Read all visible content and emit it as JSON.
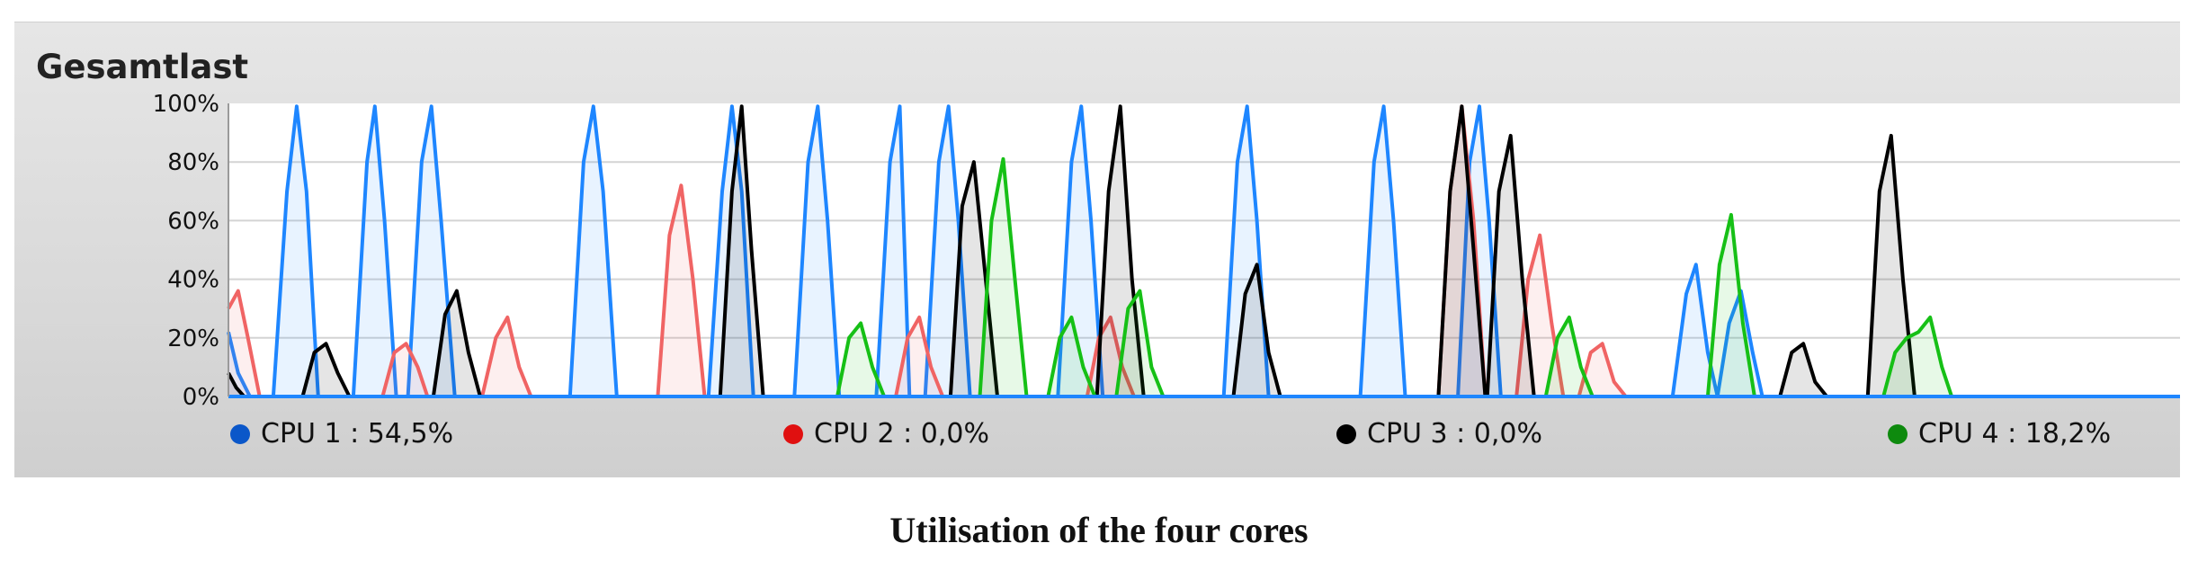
{
  "panel_title": "Gesamtlast",
  "caption": "Utilisation of the four cores",
  "chart_data": {
    "type": "area",
    "title": "Gesamtlast",
    "ylim": [
      0,
      100
    ],
    "y_ticks": [
      "0%",
      "20%",
      "40%",
      "60%",
      "80%",
      "100%"
    ],
    "grid": true,
    "legend_placement": "bottom",
    "x": [
      0,
      100
    ],
    "series": [
      {
        "name": "CPU 1",
        "legend_label": "CPU 1 : 54,5%",
        "color": "#1e86ff",
        "legend_color": "#0b57c9",
        "points": [
          [
            0.0,
            22
          ],
          [
            0.5,
            8
          ],
          [
            1.1,
            0
          ],
          [
            2.3,
            0
          ],
          [
            3.0,
            70
          ],
          [
            3.5,
            99
          ],
          [
            4.0,
            70
          ],
          [
            4.6,
            0
          ],
          [
            6.4,
            0
          ],
          [
            7.1,
            80
          ],
          [
            7.5,
            99
          ],
          [
            8.0,
            60
          ],
          [
            8.6,
            0
          ],
          [
            9.2,
            0
          ],
          [
            9.9,
            80
          ],
          [
            10.4,
            99
          ],
          [
            10.9,
            60
          ],
          [
            11.6,
            0
          ],
          [
            17.5,
            0
          ],
          [
            18.2,
            80
          ],
          [
            18.7,
            99
          ],
          [
            19.2,
            70
          ],
          [
            19.9,
            0
          ],
          [
            24.6,
            0
          ],
          [
            25.3,
            70
          ],
          [
            25.8,
            99
          ],
          [
            26.3,
            70
          ],
          [
            26.9,
            0
          ],
          [
            29.0,
            0
          ],
          [
            29.7,
            80
          ],
          [
            30.2,
            99
          ],
          [
            30.7,
            60
          ],
          [
            31.3,
            0
          ],
          [
            33.2,
            0
          ],
          [
            33.9,
            80
          ],
          [
            34.4,
            99
          ],
          [
            34.9,
            0
          ],
          [
            35.7,
            0
          ],
          [
            36.4,
            80
          ],
          [
            36.9,
            99
          ],
          [
            37.4,
            60
          ],
          [
            38.0,
            0
          ],
          [
            42.5,
            0
          ],
          [
            43.2,
            80
          ],
          [
            43.7,
            99
          ],
          [
            44.2,
            60
          ],
          [
            44.8,
            0
          ],
          [
            51.0,
            0
          ],
          [
            51.7,
            80
          ],
          [
            52.2,
            99
          ],
          [
            52.7,
            60
          ],
          [
            53.3,
            0
          ],
          [
            58.0,
            0
          ],
          [
            58.7,
            80
          ],
          [
            59.2,
            99
          ],
          [
            59.7,
            60
          ],
          [
            60.3,
            0
          ],
          [
            63.0,
            0
          ],
          [
            63.6,
            80
          ],
          [
            64.1,
            99
          ],
          [
            64.6,
            60
          ],
          [
            65.2,
            0
          ],
          [
            74.0,
            0
          ],
          [
            74.7,
            35
          ],
          [
            75.2,
            45
          ],
          [
            75.8,
            15
          ],
          [
            76.3,
            0
          ],
          [
            76.9,
            25
          ],
          [
            77.5,
            36
          ],
          [
            78.1,
            15
          ],
          [
            78.6,
            0
          ],
          [
            100,
            0
          ]
        ]
      },
      {
        "name": "CPU 2",
        "legend_label": "CPU 2 : 0,0%",
        "color": "#f06464",
        "legend_color": "#e01010",
        "points": [
          [
            0.0,
            30
          ],
          [
            0.5,
            36
          ],
          [
            1.0,
            20
          ],
          [
            1.6,
            0
          ],
          [
            7.9,
            0
          ],
          [
            8.5,
            15
          ],
          [
            9.1,
            18
          ],
          [
            9.7,
            10
          ],
          [
            10.2,
            0
          ],
          [
            13.0,
            0
          ],
          [
            13.7,
            20
          ],
          [
            14.3,
            27
          ],
          [
            14.9,
            10
          ],
          [
            15.5,
            0
          ],
          [
            22.0,
            0
          ],
          [
            22.6,
            55
          ],
          [
            23.2,
            72
          ],
          [
            23.8,
            40
          ],
          [
            24.4,
            0
          ],
          [
            34.2,
            0
          ],
          [
            34.8,
            20
          ],
          [
            35.4,
            27
          ],
          [
            36.0,
            10
          ],
          [
            36.6,
            0
          ],
          [
            44.0,
            0
          ],
          [
            44.6,
            20
          ],
          [
            45.2,
            27
          ],
          [
            45.8,
            10
          ],
          [
            46.4,
            0
          ],
          [
            62.0,
            0
          ],
          [
            62.6,
            70
          ],
          [
            63.2,
            99
          ],
          [
            63.8,
            60
          ],
          [
            64.4,
            0
          ],
          [
            66.0,
            0
          ],
          [
            66.6,
            40
          ],
          [
            67.2,
            55
          ],
          [
            67.8,
            25
          ],
          [
            68.4,
            0
          ],
          [
            69.2,
            0
          ],
          [
            69.8,
            15
          ],
          [
            70.4,
            18
          ],
          [
            71.0,
            5
          ],
          [
            71.6,
            0
          ],
          [
            100,
            0
          ]
        ]
      },
      {
        "name": "CPU 3",
        "legend_label": "CPU 3 : 0,0%",
        "color": "#000000",
        "legend_color": "#000000",
        "points": [
          [
            0.0,
            8
          ],
          [
            0.4,
            3
          ],
          [
            0.8,
            0
          ],
          [
            3.8,
            0
          ],
          [
            4.4,
            15
          ],
          [
            5.0,
            18
          ],
          [
            5.6,
            8
          ],
          [
            6.2,
            0
          ],
          [
            10.5,
            0
          ],
          [
            11.1,
            28
          ],
          [
            11.7,
            36
          ],
          [
            12.3,
            15
          ],
          [
            12.9,
            0
          ],
          [
            25.2,
            0
          ],
          [
            25.8,
            70
          ],
          [
            26.3,
            99
          ],
          [
            26.8,
            50
          ],
          [
            27.4,
            0
          ],
          [
            37.0,
            0
          ],
          [
            37.6,
            65
          ],
          [
            38.2,
            80
          ],
          [
            38.8,
            40
          ],
          [
            39.4,
            0
          ],
          [
            44.5,
            0
          ],
          [
            45.1,
            70
          ],
          [
            45.7,
            99
          ],
          [
            46.3,
            40
          ],
          [
            46.9,
            0
          ],
          [
            51.5,
            0
          ],
          [
            52.1,
            35
          ],
          [
            52.7,
            45
          ],
          [
            53.3,
            15
          ],
          [
            53.9,
            0
          ],
          [
            62.0,
            0
          ],
          [
            62.6,
            70
          ],
          [
            63.2,
            99
          ],
          [
            63.8,
            50
          ],
          [
            64.4,
            0
          ],
          [
            64.5,
            0
          ],
          [
            65.1,
            70
          ],
          [
            65.7,
            89
          ],
          [
            66.3,
            40
          ],
          [
            66.9,
            0
          ],
          [
            79.5,
            0
          ],
          [
            80.1,
            15
          ],
          [
            80.7,
            18
          ],
          [
            81.3,
            5
          ],
          [
            81.9,
            0
          ],
          [
            84.0,
            0
          ],
          [
            84.6,
            70
          ],
          [
            85.2,
            89
          ],
          [
            85.8,
            40
          ],
          [
            86.4,
            0
          ],
          [
            100,
            0
          ]
        ]
      },
      {
        "name": "CPU 4",
        "legend_label": "CPU 4 : 18,2%",
        "color": "#16c016",
        "legend_color": "#0e8a0e",
        "points": [
          [
            0.0,
            0
          ],
          [
            17.0,
            0
          ],
          [
            31.2,
            0
          ],
          [
            31.8,
            20
          ],
          [
            32.4,
            25
          ],
          [
            33.0,
            10
          ],
          [
            33.6,
            0
          ],
          [
            38.5,
            0
          ],
          [
            39.1,
            60
          ],
          [
            39.7,
            81
          ],
          [
            40.3,
            40
          ],
          [
            40.9,
            0
          ],
          [
            42.0,
            0
          ],
          [
            42.6,
            20
          ],
          [
            43.2,
            27
          ],
          [
            43.8,
            10
          ],
          [
            44.4,
            0
          ],
          [
            45.5,
            0
          ],
          [
            46.1,
            30
          ],
          [
            46.7,
            36
          ],
          [
            47.3,
            10
          ],
          [
            47.9,
            0
          ],
          [
            67.5,
            0
          ],
          [
            68.1,
            20
          ],
          [
            68.7,
            27
          ],
          [
            69.3,
            10
          ],
          [
            69.9,
            0
          ],
          [
            75.8,
            0
          ],
          [
            76.4,
            45
          ],
          [
            77.0,
            62
          ],
          [
            77.6,
            25
          ],
          [
            78.2,
            0
          ],
          [
            84.8,
            0
          ],
          [
            85.4,
            15
          ],
          [
            86.0,
            20
          ],
          [
            86.6,
            22
          ],
          [
            87.2,
            27
          ],
          [
            87.8,
            10
          ],
          [
            88.3,
            0
          ],
          [
            100,
            0
          ]
        ]
      }
    ]
  }
}
